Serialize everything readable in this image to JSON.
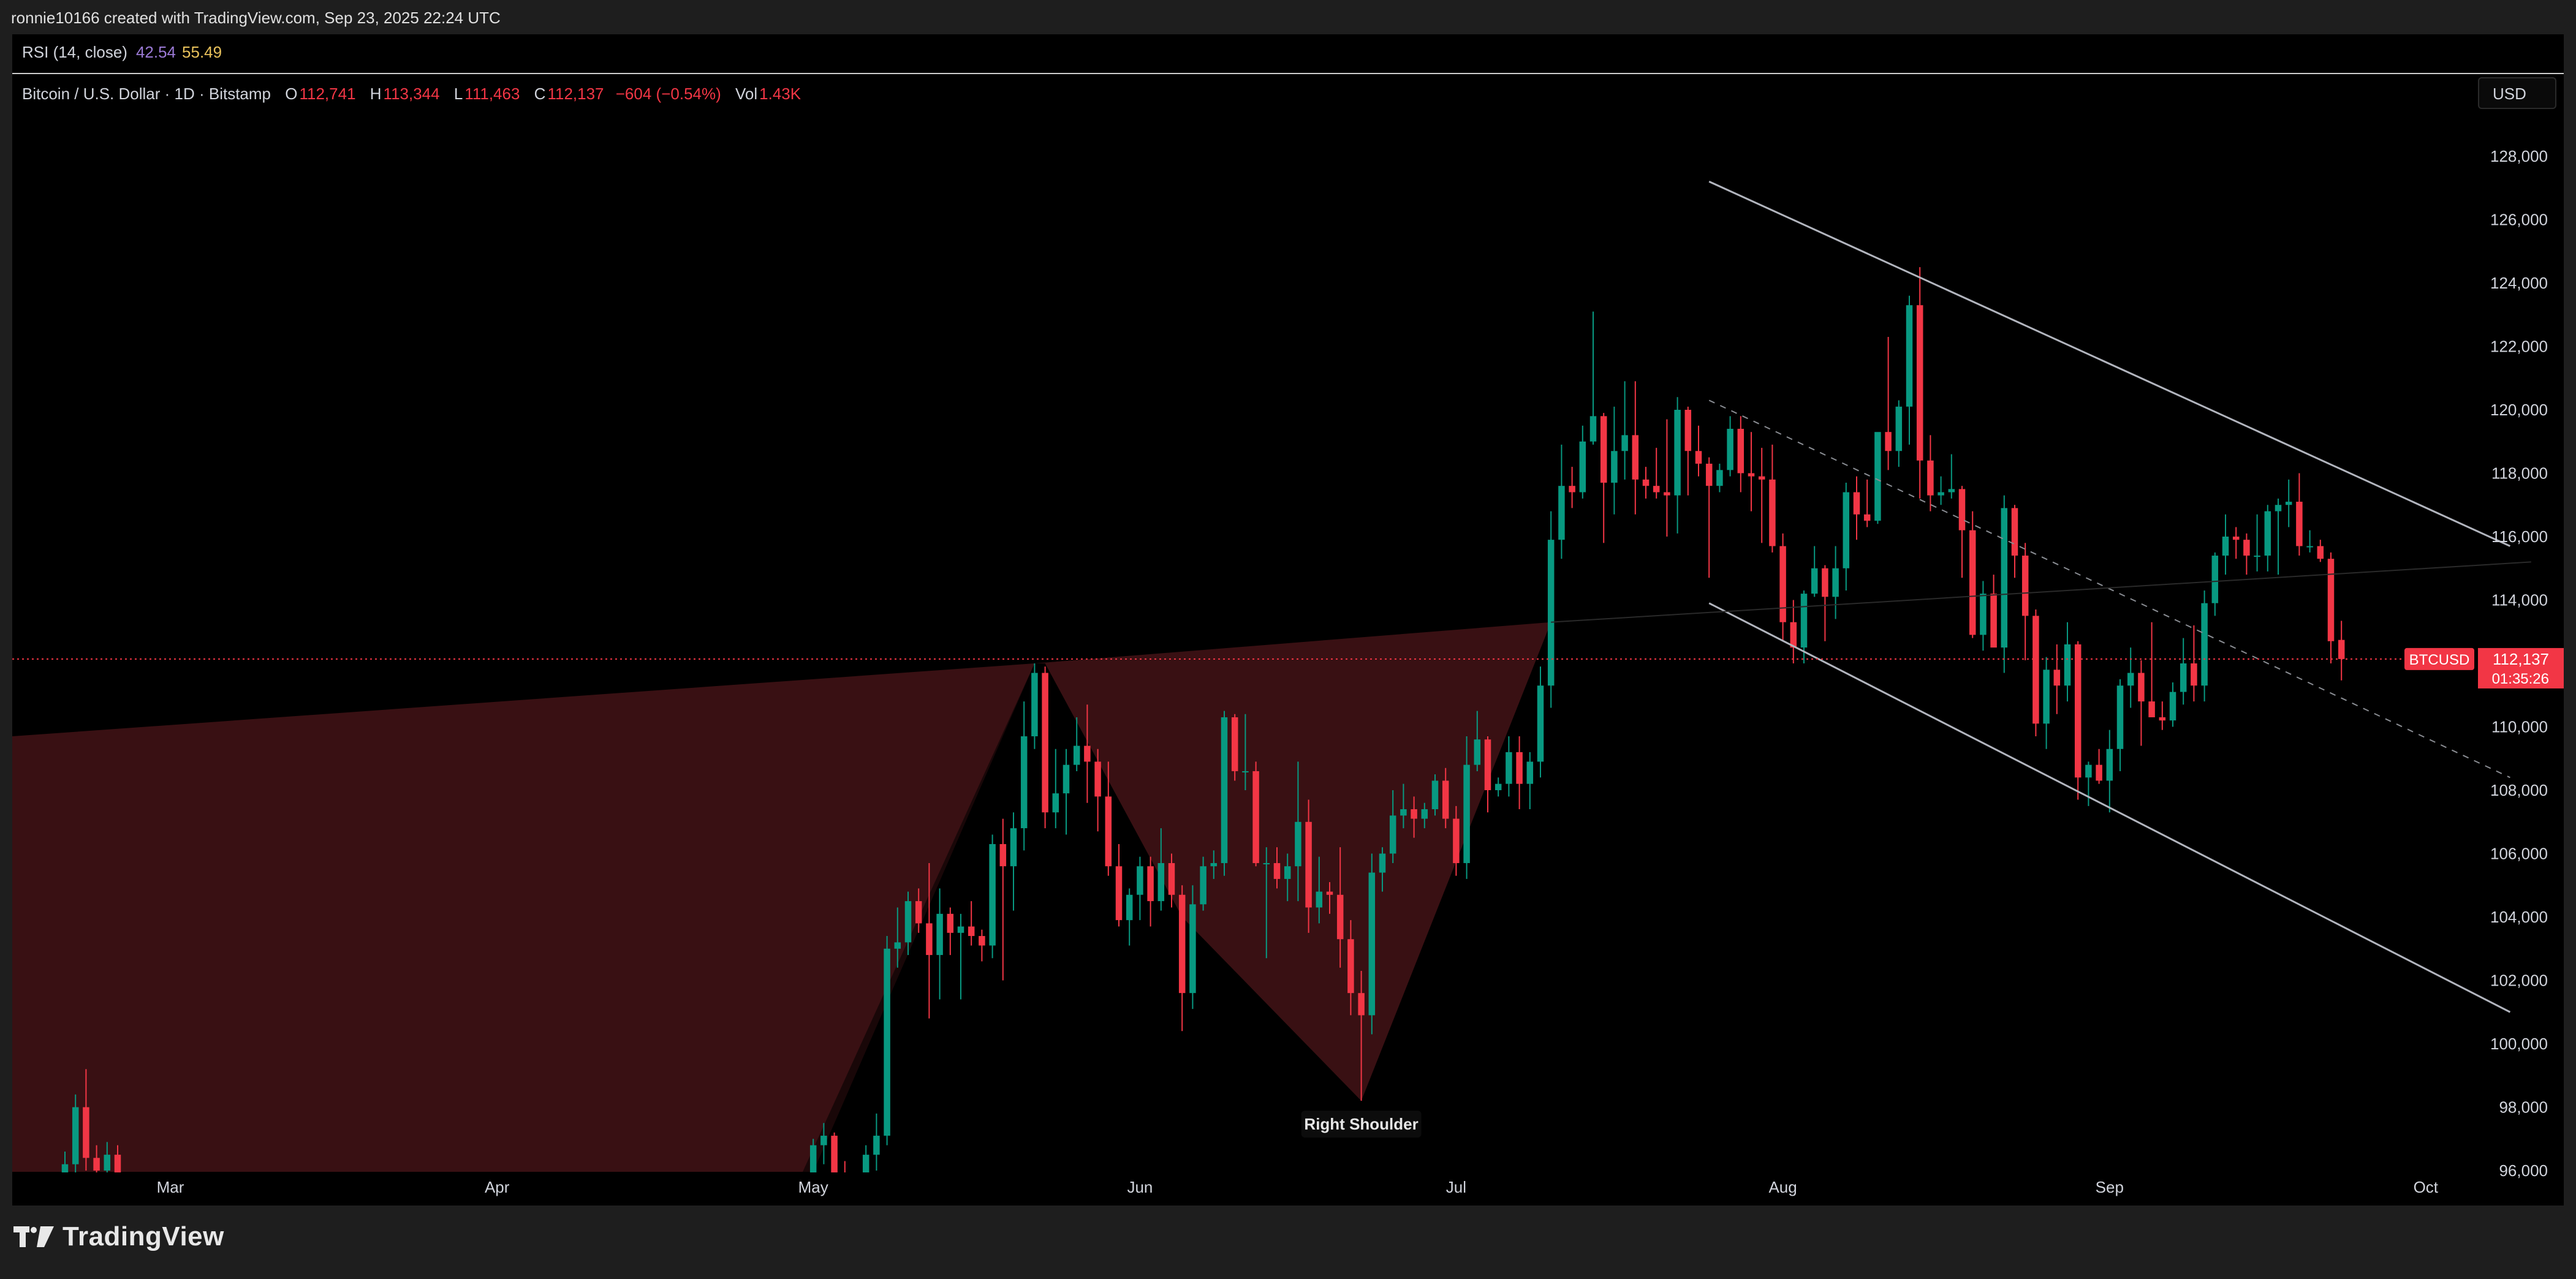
{
  "header": {
    "credit": "ronnie10166 created with TradingView.com, Sep 23, 2025 22:24 UTC"
  },
  "legend": {
    "rsi_label": "RSI (14, close)",
    "rsi_values": [
      "42.54",
      "55.49"
    ],
    "symbol_title": "Bitcoin / U.S. Dollar · 1D · Bitstamp",
    "ohlc": [
      {
        "label": "O",
        "value": "112,741"
      },
      {
        "label": "H",
        "value": "113,344"
      },
      {
        "label": "L",
        "value": "111,463"
      },
      {
        "label": "C",
        "value": "112,137"
      }
    ],
    "change": "−604 (−0.54%)",
    "vol_label": "Vol",
    "vol_value": "1.43K"
  },
  "currency": "USD",
  "price_badge": {
    "symbol": "BTCUSD",
    "price": "112,137",
    "countdown": "01:35:26"
  },
  "annotation": "Right Shoulder",
  "footer": {
    "brand": "TradingView"
  },
  "colors": {
    "up": "#089981",
    "down": "#f23645",
    "line": "#b2b5be",
    "fill": "#5c1a1e"
  },
  "chart_data": {
    "type": "candlestick",
    "ylim": [
      95000,
      129000
    ],
    "yticks": [
      96000,
      98000,
      100000,
      102000,
      104000,
      106000,
      108000,
      110000,
      112000,
      114000,
      116000,
      118000,
      120000,
      122000,
      124000,
      126000,
      128000
    ],
    "xticks": [
      {
        "label": "Mar",
        "date": "2025-03-01"
      },
      {
        "label": "Apr",
        "date": "2025-04-01"
      },
      {
        "label": "May",
        "date": "2025-05-01"
      },
      {
        "label": "Jun",
        "date": "2025-06-01"
      },
      {
        "label": "Jul",
        "date": "2025-07-01"
      },
      {
        "label": "Aug",
        "date": "2025-08-01"
      },
      {
        "label": "Sep",
        "date": "2025-09-01"
      },
      {
        "label": "Oct",
        "date": "2025-10-01"
      }
    ],
    "last_price": 112137,
    "candles": [
      [
        "2025-02-19",
        95800,
        96600,
        95100,
        96200
      ],
      [
        "2025-02-20",
        96200,
        98400,
        95900,
        98000
      ],
      [
        "2025-02-21",
        98000,
        99200,
        96000,
        96400
      ],
      [
        "2025-02-22",
        96400,
        96800,
        95300,
        96000
      ],
      [
        "2025-02-23",
        96000,
        96900,
        95100,
        96500
      ],
      [
        "2025-02-24",
        96500,
        96800,
        95000,
        95100
      ],
      [
        "2025-04-30",
        94600,
        95300,
        94100,
        94900
      ],
      [
        "2025-05-01",
        94900,
        97000,
        94600,
        96800
      ],
      [
        "2025-05-02",
        96800,
        97500,
        96200,
        97100
      ],
      [
        "2025-05-03",
        97100,
        97200,
        95800,
        95900
      ],
      [
        "2025-05-04",
        95900,
        96300,
        94500,
        94800
      ],
      [
        "2025-05-05",
        94800,
        95300,
        94200,
        94700
      ],
      [
        "2025-05-06",
        94700,
        96800,
        94500,
        96500
      ],
      [
        "2025-05-07",
        96500,
        97800,
        96000,
        97100
      ],
      [
        "2025-05-08",
        97100,
        103400,
        96800,
        103000
      ],
      [
        "2025-05-09",
        103000,
        104300,
        102400,
        103200
      ],
      [
        "2025-05-10",
        103200,
        104800,
        102800,
        104500
      ],
      [
        "2025-05-11",
        104500,
        104900,
        103500,
        103800
      ],
      [
        "2025-05-12",
        103800,
        105700,
        100800,
        102800
      ],
      [
        "2025-05-13",
        102800,
        104900,
        101400,
        104100
      ],
      [
        "2025-05-14",
        104100,
        104300,
        102800,
        103500
      ],
      [
        "2025-05-15",
        103500,
        104100,
        101400,
        103700
      ],
      [
        "2025-05-16",
        103700,
        104500,
        103100,
        103400
      ],
      [
        "2025-05-17",
        103400,
        103600,
        102600,
        103100
      ],
      [
        "2025-05-18",
        103100,
        106600,
        102700,
        106300
      ],
      [
        "2025-05-19",
        106300,
        107100,
        102000,
        105600
      ],
      [
        "2025-05-20",
        105600,
        107300,
        104200,
        106800
      ],
      [
        "2025-05-21",
        106800,
        110800,
        106100,
        109700
      ],
      [
        "2025-05-22",
        109700,
        112000,
        109300,
        111700
      ],
      [
        "2025-05-23",
        111700,
        111900,
        106800,
        107300
      ],
      [
        "2025-05-24",
        107300,
        109300,
        106800,
        107900
      ],
      [
        "2025-05-25",
        107900,
        109300,
        106600,
        108800
      ],
      [
        "2025-05-26",
        108800,
        110300,
        108600,
        109400
      ],
      [
        "2025-05-27",
        109400,
        110700,
        107600,
        108900
      ],
      [
        "2025-05-28",
        108900,
        109300,
        106700,
        107800
      ],
      [
        "2025-05-29",
        107800,
        108900,
        105300,
        105600
      ],
      [
        "2025-05-30",
        105600,
        106300,
        103700,
        103900
      ],
      [
        "2025-05-31",
        103900,
        104900,
        103100,
        104700
      ],
      [
        "2025-06-01",
        104700,
        105900,
        103900,
        105600
      ],
      [
        "2025-06-02",
        105600,
        105900,
        103700,
        104500
      ],
      [
        "2025-06-03",
        104500,
        106800,
        104200,
        105700
      ],
      [
        "2025-06-04",
        105700,
        106000,
        104300,
        104700
      ],
      [
        "2025-06-05",
        104700,
        105000,
        100400,
        101600
      ],
      [
        "2025-06-06",
        101600,
        105000,
        101100,
        104400
      ],
      [
        "2025-06-07",
        104400,
        105900,
        104200,
        105600
      ],
      [
        "2025-06-08",
        105600,
        106100,
        105200,
        105700
      ],
      [
        "2025-06-09",
        105700,
        110500,
        105300,
        110300
      ],
      [
        "2025-06-10",
        110300,
        110400,
        108300,
        108600
      ],
      [
        "2025-06-11",
        108600,
        110400,
        108000,
        108600
      ],
      [
        "2025-06-12",
        108600,
        108900,
        105600,
        105700
      ],
      [
        "2025-06-13",
        105700,
        106200,
        102700,
        105700
      ],
      [
        "2025-06-14",
        105700,
        106200,
        104900,
        105200
      ],
      [
        "2025-06-15",
        105200,
        106000,
        104500,
        105600
      ],
      [
        "2025-06-16",
        105600,
        108900,
        104500,
        107000
      ],
      [
        "2025-06-17",
        107000,
        107700,
        103500,
        104300
      ],
      [
        "2025-06-18",
        104300,
        105900,
        103800,
        104800
      ],
      [
        "2025-06-19",
        104800,
        105100,
        104100,
        104700
      ],
      [
        "2025-06-20",
        104700,
        106200,
        102400,
        103300
      ],
      [
        "2025-06-21",
        103300,
        103900,
        100900,
        101600
      ],
      [
        "2025-06-22",
        101600,
        102300,
        98200,
        100900
      ],
      [
        "2025-06-23",
        100900,
        106000,
        100300,
        105400
      ],
      [
        "2025-06-24",
        105400,
        106200,
        104800,
        106000
      ],
      [
        "2025-06-25",
        106000,
        108000,
        105700,
        107200
      ],
      [
        "2025-06-26",
        107200,
        108200,
        106800,
        107400
      ],
      [
        "2025-06-27",
        107400,
        107800,
        106500,
        107100
      ],
      [
        "2025-06-28",
        107100,
        107600,
        106800,
        107400
      ],
      [
        "2025-06-29",
        107400,
        108500,
        107200,
        108300
      ],
      [
        "2025-06-30",
        108300,
        108700,
        106800,
        107100
      ],
      [
        "2025-07-01",
        107100,
        107500,
        105300,
        105700
      ],
      [
        "2025-07-02",
        105700,
        109700,
        105200,
        108800
      ],
      [
        "2025-07-03",
        108800,
        110500,
        108600,
        109600
      ],
      [
        "2025-07-04",
        109600,
        109700,
        107300,
        108000
      ],
      [
        "2025-07-05",
        108000,
        108400,
        107800,
        108200
      ],
      [
        "2025-07-06",
        108200,
        109700,
        107800,
        109200
      ],
      [
        "2025-07-07",
        109200,
        109700,
        107400,
        108200
      ],
      [
        "2025-07-08",
        108200,
        109200,
        107400,
        108900
      ],
      [
        "2025-07-09",
        108900,
        111900,
        108400,
        111300
      ],
      [
        "2025-07-10",
        111300,
        116800,
        110600,
        115900
      ],
      [
        "2025-07-11",
        115900,
        118900,
        115300,
        117600
      ],
      [
        "2025-07-12",
        117600,
        118200,
        116900,
        117400
      ],
      [
        "2025-07-13",
        117400,
        119500,
        117200,
        119000
      ],
      [
        "2025-07-14",
        119000,
        123100,
        118900,
        119800
      ],
      [
        "2025-07-15",
        119800,
        119900,
        115800,
        117700
      ],
      [
        "2025-07-16",
        117700,
        120100,
        116700,
        118700
      ],
      [
        "2025-07-17",
        118700,
        120900,
        117800,
        119200
      ],
      [
        "2025-07-18",
        119200,
        120900,
        116700,
        117800
      ],
      [
        "2025-07-19",
        117800,
        118200,
        117200,
        117600
      ],
      [
        "2025-07-20",
        117600,
        118800,
        117200,
        117400
      ],
      [
        "2025-07-21",
        117400,
        119700,
        116000,
        117300
      ],
      [
        "2025-07-22",
        117300,
        120400,
        116100,
        120000
      ],
      [
        "2025-07-23",
        120000,
        120100,
        117300,
        118700
      ],
      [
        "2025-07-24",
        118700,
        119500,
        117900,
        118300
      ],
      [
        "2025-07-25",
        118300,
        118500,
        114700,
        117600
      ],
      [
        "2025-07-26",
        117600,
        118300,
        117400,
        118100
      ],
      [
        "2025-07-27",
        118100,
        119800,
        117900,
        119400
      ],
      [
        "2025-07-28",
        119400,
        119800,
        117400,
        118000
      ],
      [
        "2025-07-29",
        118000,
        119300,
        116800,
        117900
      ],
      [
        "2025-07-30",
        117900,
        118800,
        115800,
        117800
      ],
      [
        "2025-07-31",
        117800,
        118900,
        115500,
        115700
      ],
      [
        "2025-08-01",
        115700,
        116100,
        112700,
        113300
      ],
      [
        "2025-08-02",
        113300,
        114000,
        112000,
        112500
      ],
      [
        "2025-08-03",
        112500,
        114300,
        112000,
        114200
      ],
      [
        "2025-08-04",
        114200,
        115700,
        114100,
        115000
      ],
      [
        "2025-08-05",
        115000,
        115100,
        112700,
        114100
      ],
      [
        "2025-08-06",
        114100,
        115700,
        113400,
        115000
      ],
      [
        "2025-08-07",
        115000,
        117700,
        114300,
        117400
      ],
      [
        "2025-08-08",
        117400,
        117900,
        115900,
        116700
      ],
      [
        "2025-08-09",
        116700,
        117800,
        116300,
        116500
      ],
      [
        "2025-08-10",
        116500,
        119200,
        116400,
        119300
      ],
      [
        "2025-08-11",
        119300,
        122300,
        118100,
        118700
      ],
      [
        "2025-08-12",
        118700,
        120300,
        118200,
        120100
      ],
      [
        "2025-08-13",
        120100,
        123600,
        118900,
        123300
      ],
      [
        "2025-08-14",
        123300,
        124500,
        117200,
        118400
      ],
      [
        "2025-08-15",
        118400,
        119200,
        116800,
        117300
      ],
      [
        "2025-08-16",
        117300,
        117900,
        117000,
        117400
      ],
      [
        "2025-08-17",
        117400,
        118600,
        117200,
        117500
      ],
      [
        "2025-08-18",
        117500,
        117600,
        114700,
        116200
      ],
      [
        "2025-08-19",
        116200,
        116800,
        112800,
        112900
      ],
      [
        "2025-08-20",
        112900,
        114600,
        112400,
        114200
      ],
      [
        "2025-08-21",
        114200,
        114800,
        112700,
        112500
      ],
      [
        "2025-08-22",
        112500,
        117300,
        111700,
        116900
      ],
      [
        "2025-08-23",
        116900,
        117000,
        114700,
        115400
      ],
      [
        "2025-08-24",
        115400,
        115800,
        112100,
        113500
      ],
      [
        "2025-08-25",
        113500,
        113700,
        109700,
        110100
      ],
      [
        "2025-08-26",
        110100,
        112200,
        109300,
        111800
      ],
      [
        "2025-08-27",
        111800,
        112600,
        110400,
        111300
      ],
      [
        "2025-08-28",
        111300,
        113300,
        110800,
        112600
      ],
      [
        "2025-08-29",
        112600,
        112700,
        107700,
        108400
      ],
      [
        "2025-08-30",
        108400,
        108900,
        107500,
        108800
      ],
      [
        "2025-08-31",
        108800,
        109300,
        108200,
        108300
      ],
      [
        "2025-09-01",
        108300,
        109900,
        107300,
        109300
      ],
      [
        "2025-09-02",
        109300,
        111500,
        108600,
        111300
      ],
      [
        "2025-09-03",
        111300,
        112500,
        110600,
        111700
      ],
      [
        "2025-09-04",
        111700,
        112100,
        109400,
        110800
      ],
      [
        "2025-09-05",
        110800,
        113300,
        110400,
        110300
      ],
      [
        "2025-09-06",
        110300,
        110800,
        109900,
        110200
      ],
      [
        "2025-09-07",
        110200,
        111400,
        110000,
        111100
      ],
      [
        "2025-09-08",
        111100,
        112800,
        110700,
        112000
      ],
      [
        "2025-09-09",
        112000,
        113200,
        110800,
        111300
      ],
      [
        "2025-09-10",
        111300,
        114300,
        110800,
        113900
      ],
      [
        "2025-09-11",
        113900,
        115500,
        113500,
        115400
      ],
      [
        "2025-09-12",
        115400,
        116700,
        114800,
        116000
      ],
      [
        "2025-09-13",
        116000,
        116300,
        115300,
        115900
      ],
      [
        "2025-09-14",
        115900,
        116100,
        114800,
        115400
      ],
      [
        "2025-09-15",
        115400,
        116700,
        114900,
        115400
      ],
      [
        "2025-09-16",
        115400,
        117000,
        114900,
        116800
      ],
      [
        "2025-09-17",
        116800,
        117200,
        114800,
        117000
      ],
      [
        "2025-09-18",
        117000,
        117800,
        116300,
        117100
      ],
      [
        "2025-09-19",
        117100,
        118000,
        115400,
        115700
      ],
      [
        "2025-09-20",
        115700,
        116200,
        115500,
        115700
      ],
      [
        "2025-09-21",
        115700,
        115900,
        115200,
        115300
      ],
      [
        "2025-09-22",
        115300,
        115500,
        112000,
        112700
      ],
      [
        "2025-09-23",
        112741,
        113344,
        111463,
        112137
      ]
    ],
    "drawings": {
      "channel_upper": [
        [
          "2025-07-25",
          127200
        ],
        [
          "2025-10-09",
          115700
        ]
      ],
      "channel_mid": [
        [
          "2025-07-25",
          120300
        ],
        [
          "2025-10-09",
          108400
        ]
      ],
      "channel_lower": [
        [
          "2025-07-25",
          113900
        ],
        [
          "2025-10-09",
          101000
        ]
      ],
      "neckline": [
        [
          "2025-02-14",
          109700
        ],
        [
          "2025-07-10",
          113300
        ],
        [
          "2025-10-11",
          115200
        ]
      ],
      "right_shoulder_point": [
        "2025-06-22",
        98200
      ]
    }
  }
}
